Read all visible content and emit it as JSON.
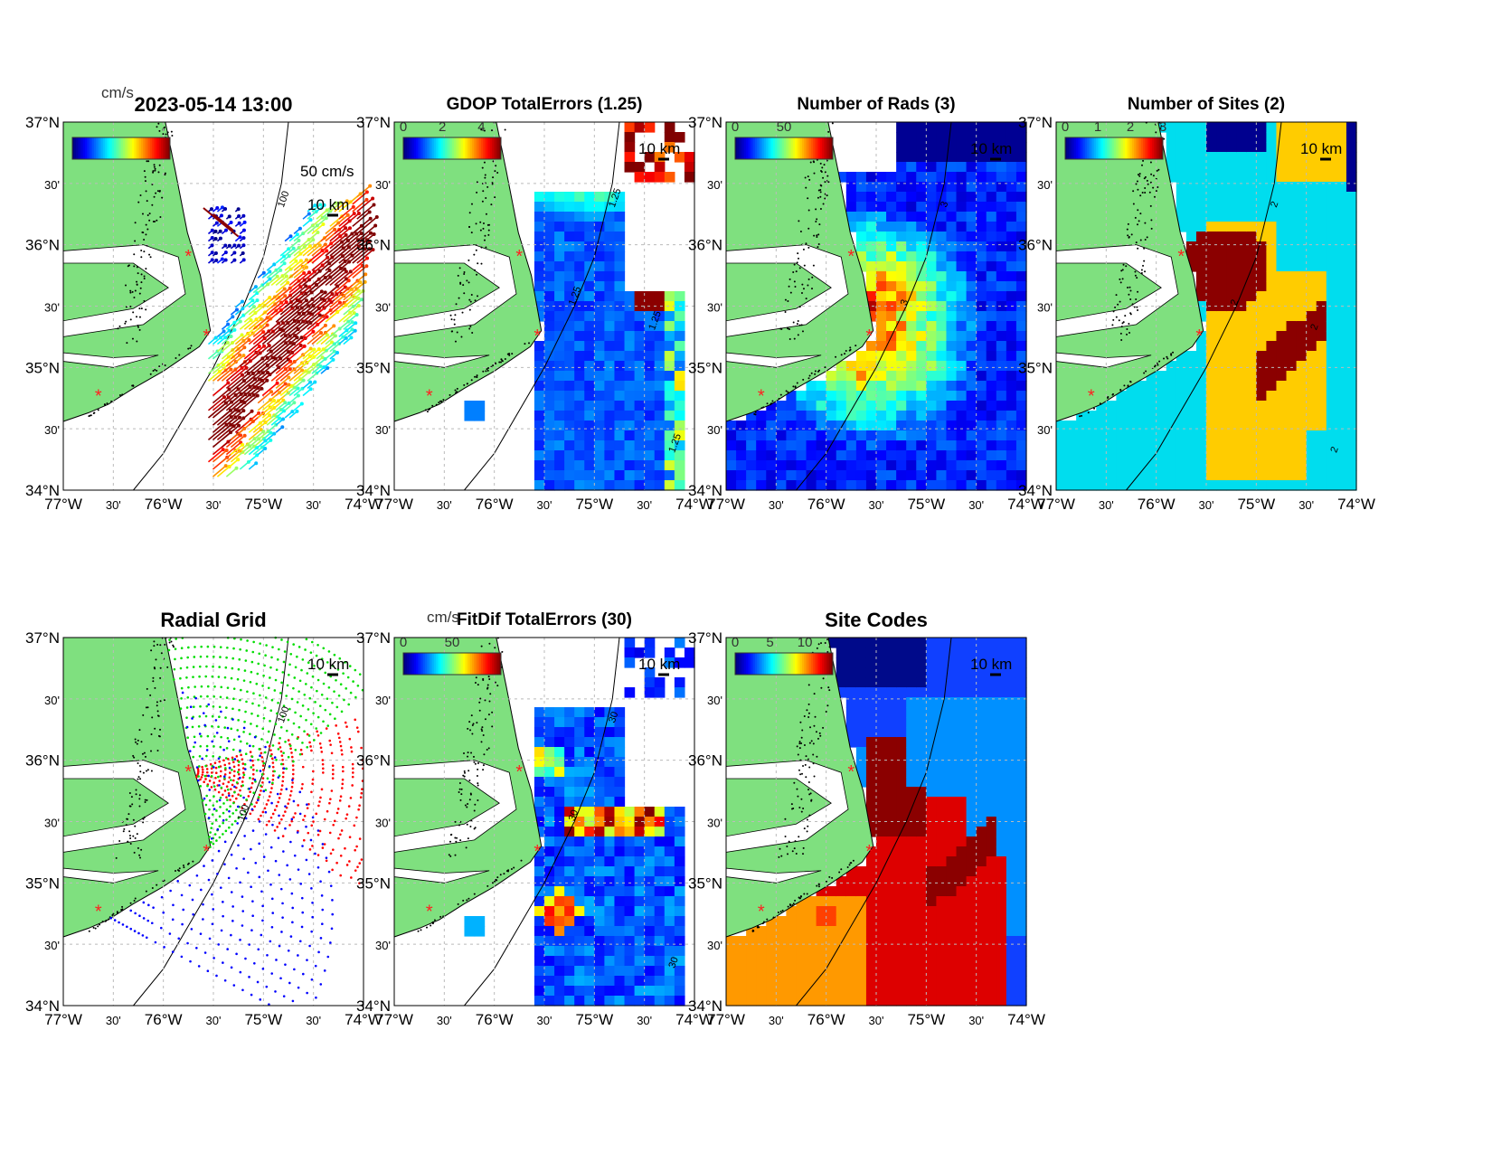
{
  "figure_title": "2023-05-14 13:00",
  "axes": {
    "lat_ticks": [
      "37°N",
      "30'",
      "36°N",
      "30'",
      "35°N",
      "30'",
      "34°N"
    ],
    "lon_ticks": [
      "77°W",
      "30'",
      "76°W",
      "30'",
      "75°W",
      "30'",
      "74°W"
    ],
    "lon_range": [
      -77,
      -74
    ],
    "lat_range": [
      34,
      37
    ]
  },
  "sites": [
    [
      -75.75,
      35.91
    ],
    [
      -75.57,
      35.26
    ],
    [
      -76.65,
      34.77
    ]
  ],
  "colors": {
    "land": "#7fe07f",
    "marker": "#ff2020",
    "radial_site1": "#ff0000",
    "radial_site2": "#00dd00",
    "radial_site3": "#0000ff"
  },
  "chart_data": [
    {
      "type": "quiver",
      "title": "2023-05-14 13:00",
      "colorbar_unit": "cm/s",
      "scale_label": "50 cm/s",
      "distance_label": "10 km",
      "contour_label": "100"
    },
    {
      "type": "heatmap",
      "title": "GDOP TotalErrors (1.25)",
      "colorbar_ticks": [
        "0",
        "2",
        "4"
      ],
      "colorbar_range": [
        0,
        5
      ],
      "distance_label": "10 km",
      "contour_labels": [
        "1.25",
        "1.25",
        "1.25",
        "1.25"
      ]
    },
    {
      "type": "heatmap",
      "title": "Number of Rads (3)",
      "colorbar_ticks": [
        "0",
        "50"
      ],
      "colorbar_range": [
        0,
        100
      ],
      "distance_label": "10 km",
      "contour_labels": [
        "3",
        "3"
      ]
    },
    {
      "type": "heatmap",
      "title": "Number of Sites (2)",
      "colorbar_ticks": [
        "0",
        "1",
        "2",
        "3"
      ],
      "colorbar_range": [
        0,
        3
      ],
      "distance_label": "10 km",
      "contour_labels": [
        "2",
        "2",
        "2",
        "2"
      ]
    },
    {
      "type": "scatter",
      "title": "Radial Grid",
      "distance_label": "10 km",
      "contour_labels": [
        "100",
        "100"
      ]
    },
    {
      "type": "heatmap",
      "title": "FitDif TotalErrors (30)",
      "colorbar_unit": "cm/s",
      "colorbar_ticks": [
        "0",
        "50"
      ],
      "colorbar_range": [
        0,
        100
      ],
      "distance_label": "10 km",
      "contour_labels": [
        "30",
        "30",
        "30"
      ]
    },
    {
      "type": "heatmap",
      "title": "Site Codes",
      "colorbar_ticks": [
        "0",
        "5",
        "10"
      ],
      "colorbar_range": [
        0,
        14
      ],
      "distance_label": "10 km"
    }
  ]
}
